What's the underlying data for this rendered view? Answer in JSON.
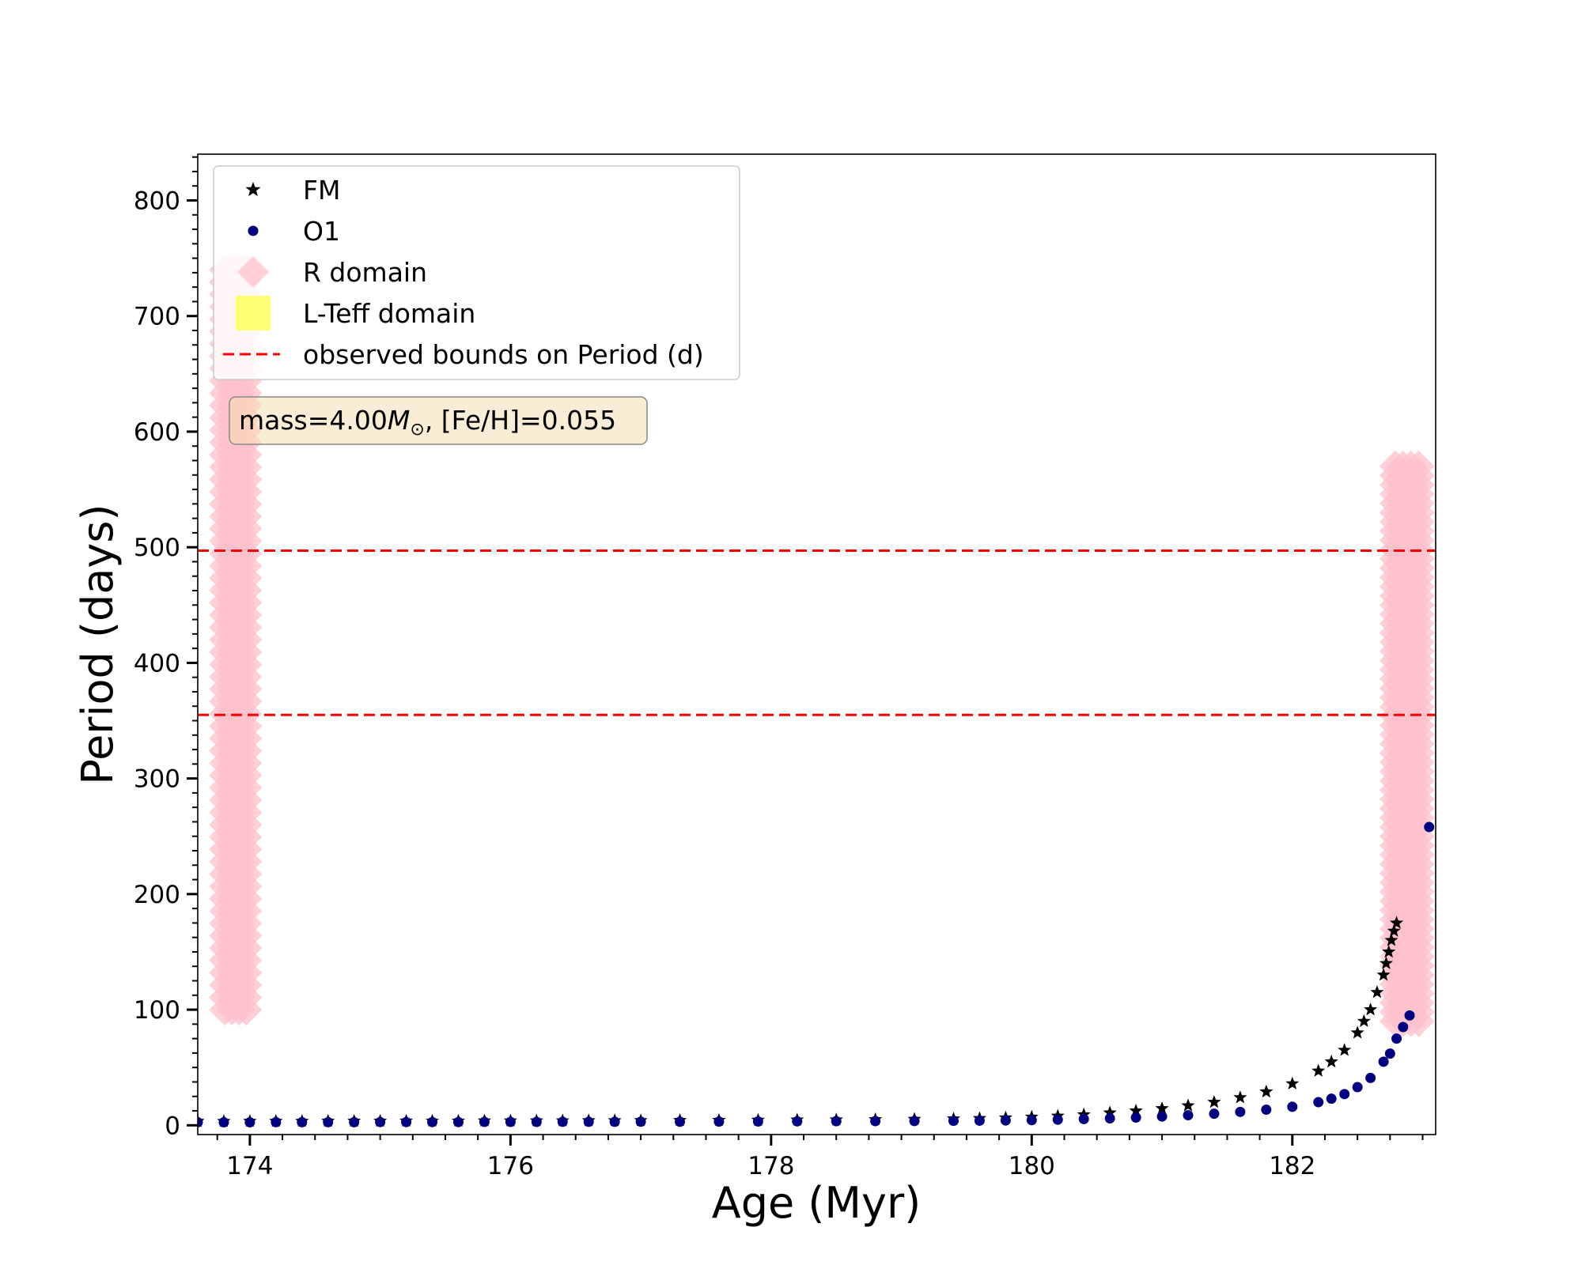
{
  "chart_data": {
    "type": "scatter",
    "xlabel": "Age (Myr)",
    "ylabel": "Period (days)",
    "xlim": [
      173.6,
      183.1
    ],
    "ylim": [
      -8,
      840
    ],
    "x_ticks": [
      174,
      176,
      178,
      180,
      182
    ],
    "y_ticks": [
      0,
      100,
      200,
      300,
      400,
      500,
      600,
      700,
      800
    ],
    "grid": false,
    "legend_position": "top-left",
    "annotation": {
      "prefix": "mass=4.00",
      "symbol": "M",
      "symbol_sub": "⊙",
      "suffix": ", [Fe/H]=0.055"
    },
    "hlines": [
      {
        "y": 497,
        "color": "#ff0000",
        "style": "dashed"
      },
      {
        "y": 355,
        "color": "#ff0000",
        "style": "dashed"
      }
    ],
    "series": [
      {
        "name": "FM",
        "marker": "star",
        "color": "#000000",
        "x": [
          173.6,
          173.8,
          174.0,
          174.2,
          174.4,
          174.6,
          174.8,
          175.0,
          175.2,
          175.4,
          175.6,
          175.8,
          176.0,
          176.2,
          176.4,
          176.6,
          176.8,
          177.0,
          177.3,
          177.6,
          177.9,
          178.2,
          178.5,
          178.8,
          179.1,
          179.4,
          179.6,
          179.8,
          180.0,
          180.2,
          180.4,
          180.6,
          180.8,
          181.0,
          181.2,
          181.4,
          181.6,
          181.8,
          182.0,
          182.2,
          182.3,
          182.4,
          182.5,
          182.55,
          182.6,
          182.65,
          182.7,
          182.72,
          182.74,
          182.76,
          182.78,
          182.8
        ],
        "y": [
          3.5,
          3.5,
          3.6,
          3.6,
          3.6,
          3.7,
          3.7,
          3.7,
          3.8,
          3.8,
          3.8,
          3.9,
          3.9,
          4.0,
          4.0,
          4.1,
          4.1,
          4.2,
          4.3,
          4.4,
          4.5,
          4.7,
          4.8,
          5.0,
          5.3,
          5.6,
          6.0,
          6.5,
          7.2,
          8.0,
          9.2,
          10.8,
          12.5,
          14.5,
          17.0,
          20.0,
          24.0,
          29.0,
          36.0,
          47.0,
          55.0,
          65.0,
          80.0,
          90.0,
          100.0,
          115.0,
          130.0,
          140.0,
          150.0,
          160.0,
          168.0,
          175.0
        ]
      },
      {
        "name": "O1",
        "marker": "circle",
        "color": "#000080",
        "x": [
          173.6,
          173.8,
          174.0,
          174.2,
          174.4,
          174.6,
          174.8,
          175.0,
          175.2,
          175.4,
          175.6,
          175.8,
          176.0,
          176.2,
          176.4,
          176.6,
          176.8,
          177.0,
          177.3,
          177.6,
          177.9,
          178.2,
          178.5,
          178.8,
          179.1,
          179.4,
          179.6,
          179.8,
          180.0,
          180.2,
          180.4,
          180.6,
          180.8,
          181.0,
          181.2,
          181.4,
          181.6,
          181.8,
          182.0,
          182.2,
          182.3,
          182.4,
          182.5,
          182.6,
          182.7,
          182.75,
          182.8,
          182.85,
          182.9,
          183.05
        ],
        "y": [
          2.6,
          2.6,
          2.6,
          2.7,
          2.7,
          2.7,
          2.7,
          2.8,
          2.8,
          2.8,
          2.8,
          2.9,
          2.9,
          2.9,
          3.0,
          3.0,
          3.0,
          3.1,
          3.1,
          3.2,
          3.3,
          3.4,
          3.5,
          3.6,
          3.7,
          3.9,
          4.0,
          4.2,
          4.5,
          4.9,
          5.4,
          6.0,
          6.7,
          7.6,
          8.7,
          10.0,
          11.6,
          13.5,
          16.0,
          20.0,
          23.0,
          27.0,
          33.0,
          41.0,
          55.0,
          62.0,
          75.0,
          85.0,
          95.0,
          258.0
        ]
      },
      {
        "name": "R domain",
        "marker": "diamond",
        "color": "#ffc0cb",
        "ranges": [
          {
            "x_min": 173.78,
            "x_max": 174.0,
            "y_min": 100,
            "y_max": 740
          },
          {
            "x_min": 182.76,
            "x_max": 183.0,
            "y_min": 90,
            "y_max": 570
          }
        ]
      },
      {
        "name": "L-Teff domain",
        "marker": "square",
        "color": "#ffff66",
        "x": [],
        "y": []
      }
    ],
    "legend_extra": [
      {
        "name": "observed bounds on Period (d)",
        "color": "#ff0000",
        "style": "dashed"
      }
    ]
  }
}
